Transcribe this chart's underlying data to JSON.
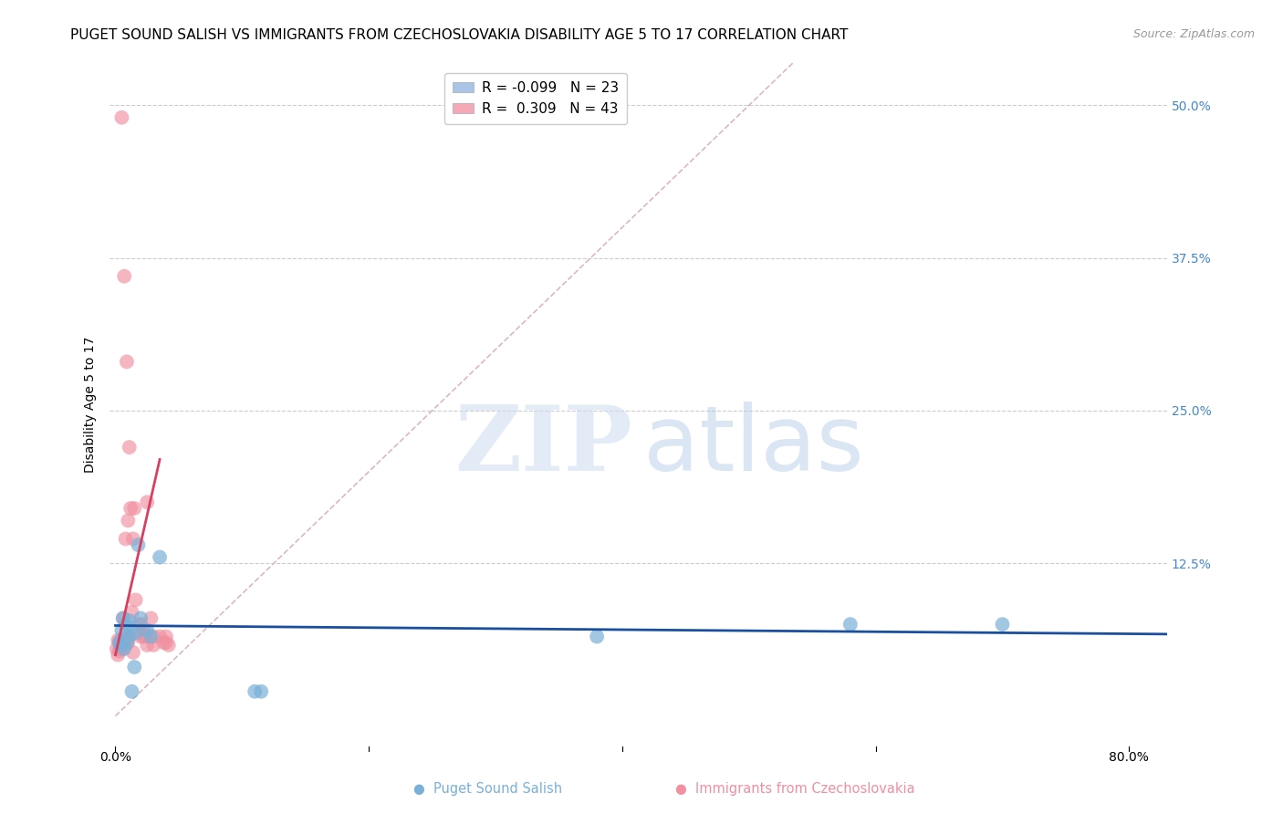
{
  "title": "PUGET SOUND SALISH VS IMMIGRANTS FROM CZECHOSLOVAKIA DISABILITY AGE 5 TO 17 CORRELATION CHART",
  "source": "Source: ZipAtlas.com",
  "ylabel": "Disability Age 5 to 17",
  "ytick_labels": [
    "",
    "12.5%",
    "25.0%",
    "37.5%",
    "50.0%"
  ],
  "ytick_values": [
    0,
    0.125,
    0.25,
    0.375,
    0.5
  ],
  "xtick_values": [
    0.0,
    0.2,
    0.4,
    0.6,
    0.8
  ],
  "xtick_labels": [
    "0.0%",
    "",
    "",
    "",
    "80.0%"
  ],
  "xlim": [
    -0.005,
    0.83
  ],
  "ylim": [
    -0.025,
    0.535
  ],
  "legend1_r": "-0.099",
  "legend1_n": "23",
  "legend2_r": "0.309",
  "legend2_n": "43",
  "legend1_color": "#aac4e8",
  "legend2_color": "#f5a8b8",
  "blue_scatter_x": [
    0.003,
    0.004,
    0.005,
    0.006,
    0.007,
    0.008,
    0.009,
    0.01,
    0.011,
    0.012,
    0.013,
    0.015,
    0.016,
    0.018,
    0.02,
    0.025,
    0.028,
    0.035,
    0.11,
    0.115,
    0.38,
    0.58,
    0.7
  ],
  "blue_scatter_y": [
    0.06,
    0.058,
    0.07,
    0.08,
    0.055,
    0.075,
    0.06,
    0.065,
    0.078,
    0.072,
    0.02,
    0.04,
    0.068,
    0.14,
    0.08,
    0.07,
    0.065,
    0.13,
    0.02,
    0.02,
    0.065,
    0.075,
    0.075
  ],
  "pink_scatter_x": [
    0.001,
    0.002,
    0.002,
    0.003,
    0.003,
    0.004,
    0.004,
    0.005,
    0.005,
    0.006,
    0.006,
    0.007,
    0.007,
    0.008,
    0.008,
    0.009,
    0.009,
    0.01,
    0.01,
    0.011,
    0.011,
    0.012,
    0.013,
    0.014,
    0.014,
    0.015,
    0.016,
    0.018,
    0.02,
    0.02,
    0.022,
    0.022,
    0.024,
    0.025,
    0.025,
    0.028,
    0.03,
    0.03,
    0.035,
    0.038,
    0.04,
    0.04,
    0.042
  ],
  "pink_scatter_y": [
    0.055,
    0.05,
    0.062,
    0.053,
    0.06,
    0.055,
    0.062,
    0.058,
    0.49,
    0.055,
    0.08,
    0.06,
    0.36,
    0.062,
    0.145,
    0.062,
    0.29,
    0.06,
    0.16,
    0.065,
    0.22,
    0.17,
    0.085,
    0.052,
    0.145,
    0.17,
    0.095,
    0.075,
    0.075,
    0.065,
    0.07,
    0.065,
    0.065,
    0.058,
    0.175,
    0.08,
    0.065,
    0.058,
    0.065,
    0.06,
    0.065,
    0.06,
    0.058
  ],
  "blue_line_x": [
    0.0,
    0.83
  ],
  "blue_line_y": [
    0.074,
    0.067
  ],
  "pink_line_x": [
    0.0,
    0.035
  ],
  "pink_line_y": [
    0.05,
    0.21
  ],
  "diagonal_line_x": [
    0.0,
    0.535
  ],
  "diagonal_line_y": [
    0.0,
    0.535
  ],
  "watermark_zip": "ZIP",
  "watermark_atlas": "atlas",
  "title_fontsize": 11,
  "axis_label_fontsize": 10,
  "tick_fontsize": 10,
  "background_color": "#ffffff",
  "scatter_blue_color": "#7ab0d8",
  "scatter_pink_color": "#f090a0",
  "trend_blue_color": "#1a4fa0",
  "trend_pink_color": "#d84060",
  "diagonal_color": "#d8b0b8",
  "grid_color": "#cccccc",
  "right_tick_color": "#4488cc",
  "bottom_legend_blue": "#7ab0d8",
  "bottom_legend_pink": "#f090a0"
}
